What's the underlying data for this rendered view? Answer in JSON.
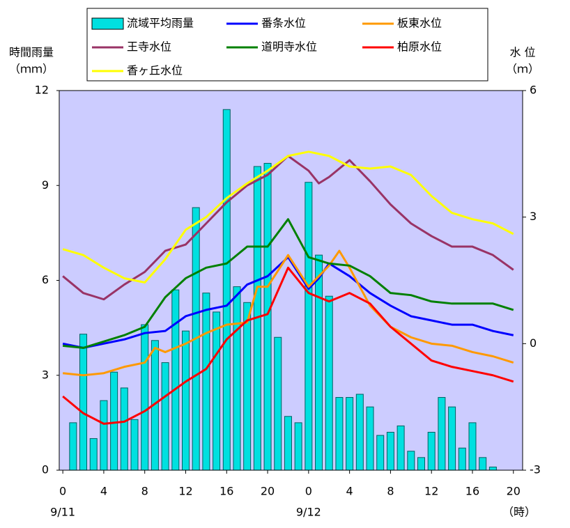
{
  "chart_data": {
    "type": "combo",
    "y_label": [
      "時間雨量",
      "（ｍｍ）"
    ],
    "y2_label": [
      "水 位",
      "（ｍ）"
    ],
    "x_label": "（時）",
    "xlim": [
      -0.35,
      44.9
    ],
    "xticks": [
      0,
      4,
      8,
      12,
      16,
      20,
      {
        "value": 24,
        "label": "0"
      },
      {
        "value": 28,
        "label": "4"
      },
      {
        "value": 32,
        "label": "8"
      },
      {
        "value": 36,
        "label": "12"
      },
      {
        "value": 40,
        "label": "16"
      },
      {
        "value": 44,
        "label": "20"
      }
    ],
    "date_labels": [
      {
        "value": 0,
        "label": "9/11"
      },
      {
        "value": 24,
        "label": "9/12"
      }
    ],
    "ylim": [
      0,
      12
    ],
    "yticks": [
      0,
      3,
      6,
      9,
      12
    ],
    "y2lim": [
      -3,
      6
    ],
    "y2ticks": [
      -3,
      0,
      3,
      6
    ],
    "background": "#ccccff",
    "series": [
      {
        "name": "流域平均雨量",
        "type": "bar",
        "axis": "y",
        "color": "#00e0e0",
        "x": [
          1,
          2,
          3,
          4,
          5,
          6,
          7,
          8,
          9,
          10,
          11,
          12,
          13,
          14,
          15,
          16,
          17,
          18,
          19,
          20,
          21,
          22,
          23,
          24,
          25,
          26,
          27,
          28,
          29,
          30,
          31,
          32,
          33,
          34,
          35,
          36,
          37,
          38,
          39,
          40,
          41,
          42,
          43
        ],
        "values": [
          1.5,
          4.3,
          1.0,
          2.2,
          3.1,
          2.6,
          1.6,
          4.6,
          4.1,
          3.4,
          5.7,
          4.4,
          8.3,
          5.6,
          5.0,
          11.4,
          5.8,
          5.3,
          9.6,
          9.7,
          4.2,
          1.7,
          1.5,
          9.1,
          6.8,
          5.5,
          2.3,
          2.3,
          2.4,
          2.0,
          1.1,
          1.2,
          1.4,
          0.6,
          0.4,
          1.2,
          2.3,
          2.0,
          0.7,
          1.5,
          0.4,
          0.1,
          0
        ]
      },
      {
        "name": "番条水位",
        "type": "line",
        "axis": "y2",
        "color": "#0000ff",
        "x": [
          0,
          2,
          4,
          6,
          8,
          10,
          12,
          14,
          16,
          18,
          20,
          22,
          24,
          25,
          26,
          28,
          30,
          32,
          34,
          36,
          38,
          40,
          42,
          44
        ],
        "values": [
          0,
          -0.1,
          0,
          0.1,
          0.25,
          0.3,
          0.65,
          0.8,
          0.9,
          1.4,
          1.6,
          2.05,
          1.3,
          1.55,
          1.9,
          1.6,
          1.2,
          0.9,
          0.65,
          0.55,
          0.45,
          0.45,
          0.3,
          0.2
        ]
      },
      {
        "name": "板東水位",
        "type": "line",
        "axis": "y2",
        "color": "#ff9900",
        "x": [
          0,
          2,
          4,
          6,
          8,
          9,
          10,
          12,
          14,
          16,
          18,
          19,
          20,
          22,
          24,
          26,
          27,
          28,
          30,
          32,
          34,
          36,
          38,
          40,
          42,
          44
        ],
        "values": [
          -0.7,
          -0.75,
          -0.7,
          -0.55,
          -0.45,
          -0.1,
          -0.2,
          0,
          0.25,
          0.45,
          0.5,
          1.35,
          1.35,
          2.1,
          1.35,
          1.85,
          2.2,
          1.8,
          0.9,
          0.4,
          0.15,
          0,
          -0.05,
          -0.2,
          -0.3,
          -0.45
        ]
      },
      {
        "name": "王寺水位",
        "type": "line",
        "axis": "y2",
        "color": "#993366",
        "x": [
          0,
          2,
          4,
          6,
          8,
          10,
          12,
          14,
          16,
          18,
          20,
          22,
          24,
          25,
          26,
          28,
          30,
          32,
          34,
          36,
          38,
          40,
          42,
          44
        ],
        "values": [
          1.6,
          1.2,
          1.05,
          1.4,
          1.7,
          2.2,
          2.35,
          2.85,
          3.35,
          3.75,
          4.0,
          4.45,
          4.1,
          3.8,
          3.95,
          4.35,
          3.85,
          3.3,
          2.85,
          2.55,
          2.3,
          2.3,
          2.1,
          1.75
        ]
      },
      {
        "name": "道明寺水位",
        "type": "line",
        "axis": "y2",
        "color": "#008000",
        "x": [
          0,
          2,
          4,
          6,
          8,
          10,
          12,
          14,
          16,
          18,
          20,
          22,
          24,
          26,
          28,
          30,
          32,
          34,
          36,
          38,
          40,
          42,
          44
        ],
        "values": [
          -0.05,
          -0.1,
          0.05,
          0.2,
          0.4,
          1.1,
          1.55,
          1.8,
          1.9,
          2.3,
          2.3,
          2.95,
          2.05,
          1.9,
          1.85,
          1.6,
          1.2,
          1.15,
          1.0,
          0.95,
          0.95,
          0.95,
          0.8
        ]
      },
      {
        "name": "柏原水位",
        "type": "line",
        "axis": "y2",
        "color": "#ff0000",
        "x": [
          0,
          2,
          4,
          6,
          8,
          10,
          12,
          14,
          16,
          18,
          20,
          22,
          24,
          26,
          28,
          30,
          32,
          34,
          36,
          38,
          40,
          42,
          44
        ],
        "values": [
          -1.25,
          -1.65,
          -1.9,
          -1.85,
          -1.6,
          -1.25,
          -0.9,
          -0.6,
          0.1,
          0.55,
          0.7,
          1.8,
          1.2,
          1.0,
          1.2,
          0.95,
          0.4,
          0,
          -0.4,
          -0.55,
          -0.65,
          -0.75,
          -0.9
        ]
      },
      {
        "name": "香ヶ丘水位",
        "type": "line",
        "axis": "y2",
        "color": "#ffff00",
        "x": [
          0,
          2,
          4,
          6,
          8,
          10,
          12,
          14,
          16,
          18,
          20,
          22,
          24,
          26,
          28,
          30,
          32,
          34,
          36,
          38,
          40,
          42,
          44
        ],
        "values": [
          2.24,
          2.1,
          1.8,
          1.55,
          1.45,
          2.0,
          2.7,
          3.0,
          3.45,
          3.8,
          4.1,
          4.45,
          4.55,
          4.45,
          4.2,
          4.15,
          4.2,
          4.0,
          3.5,
          3.1,
          2.95,
          2.85,
          2.6
        ]
      }
    ]
  }
}
